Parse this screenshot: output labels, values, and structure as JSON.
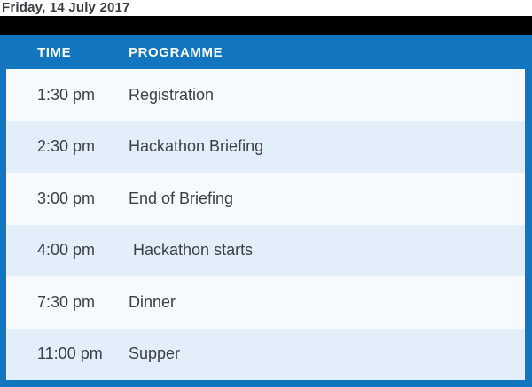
{
  "title_bar": {
    "date": "Friday, 14 July 2017"
  },
  "table": {
    "columns": {
      "time_label": "TIME",
      "programme_label": "PROGRAMME"
    },
    "rows": [
      {
        "time": "1:30 pm",
        "programme": "Registration"
      },
      {
        "time": "2:30 pm",
        "programme": "Hackathon Briefing"
      },
      {
        "time": "3:00 pm",
        "programme": "End of Briefing"
      },
      {
        "time": "4:00 pm",
        "programme": " Hackathon starts"
      },
      {
        "time": "7:30 pm",
        "programme": "Dinner"
      },
      {
        "time": "11:00 pm",
        "programme": "Supper"
      }
    ]
  },
  "colors": {
    "accent_blue": "#1176bf",
    "divider_black": "#000000",
    "row_light": "#f6fafd",
    "row_tint": "#e2eefa",
    "header_text": "#ffffff",
    "body_text": "#3c4147",
    "title_text": "#3a3e43"
  }
}
